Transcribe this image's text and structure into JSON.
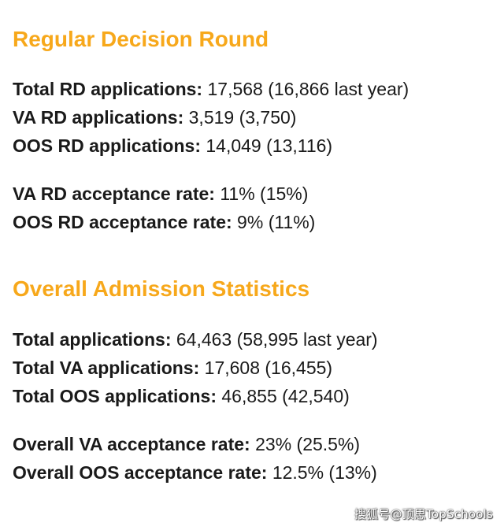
{
  "regular_decision": {
    "title": "Regular Decision Round",
    "applications": [
      {
        "label": "Total RD applications:",
        "value": " 17,568 (16,866 last year)"
      },
      {
        "label": "VA RD applications:",
        "value": " 3,519 (3,750)"
      },
      {
        "label": "OOS RD applications:",
        "value": " 14,049 (13,116)"
      }
    ],
    "rates": [
      {
        "label": "VA RD acceptance rate:",
        "value": " 11% (15%)"
      },
      {
        "label": "OOS RD acceptance rate:",
        "value": " 9% (11%)"
      }
    ]
  },
  "overall": {
    "title": "Overall Admission Statistics",
    "applications": [
      {
        "label": "Total applications:",
        "value": " 64,463 (58,995 last year)"
      },
      {
        "label": "Total VA applications:",
        "value": " 17,608 (16,455)"
      },
      {
        "label": "Total OOS applications:",
        "value": " 46,855 (42,540)"
      }
    ],
    "rates": [
      {
        "label": "Overall VA acceptance rate:",
        "value": " 23% (25.5%)"
      },
      {
        "label": "Overall OOS acceptance rate:",
        "value": " 12.5% (13%)"
      }
    ]
  },
  "watermark": "搜狐号@顶思TopSchools",
  "colors": {
    "heading": "#f7a81b",
    "text": "#1a1a1a",
    "background": "#ffffff"
  }
}
